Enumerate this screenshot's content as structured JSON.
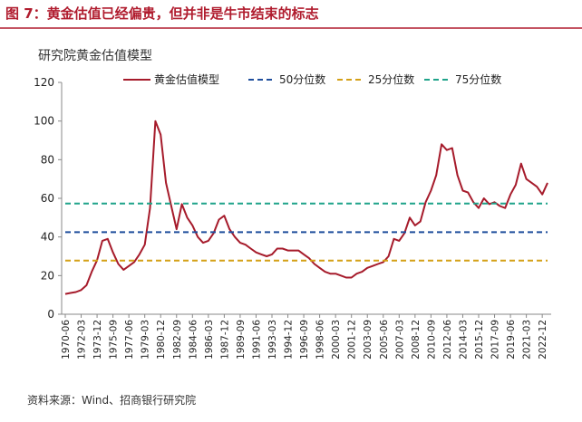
{
  "chart_data": {
    "type": "line",
    "title": "图 7：黄金估值已经偏贵，但并非是牛市结束的标志",
    "subtitle": "研究院黄金估值模型",
    "source": "资料来源：Wind、招商银行研究院",
    "x": [
      "1970-06",
      "1971-01",
      "1971-08",
      "1972-03",
      "1972-10",
      "1973-05",
      "1973-12",
      "1974-07",
      "1975-02",
      "1975-09",
      "1976-04",
      "1976-11",
      "1977-06",
      "1978-01",
      "1978-08",
      "1979-03",
      "1979-10",
      "1980-05",
      "1980-12",
      "1981-07",
      "1982-02",
      "1982-09",
      "1983-04",
      "1983-11",
      "1984-06",
      "1985-01",
      "1985-08",
      "1986-03",
      "1986-10",
      "1987-05",
      "1987-12",
      "1988-07",
      "1989-02",
      "1989-09",
      "1990-04",
      "1990-11",
      "1991-06",
      "1992-01",
      "1992-08",
      "1993-03",
      "1993-10",
      "1994-05",
      "1994-12",
      "1995-07",
      "1996-02",
      "1996-09",
      "1997-04",
      "1997-11",
      "1998-06",
      "1999-01",
      "1999-08",
      "2000-03",
      "2000-10",
      "2001-05",
      "2001-12",
      "2002-07",
      "2003-02",
      "2003-09",
      "2004-04",
      "2004-11",
      "2005-06",
      "2006-01",
      "2006-08",
      "2007-03",
      "2007-10",
      "2008-05",
      "2008-12",
      "2009-07",
      "2010-02",
      "2010-09",
      "2011-04",
      "2011-11",
      "2012-06",
      "2013-01",
      "2013-08",
      "2014-03",
      "2014-10",
      "2015-05",
      "2015-12",
      "2016-07",
      "2017-02",
      "2017-09",
      "2018-04",
      "2018-11",
      "2019-06",
      "2020-01",
      "2020-08",
      "2021-03",
      "2021-10",
      "2022-05",
      "2022-12",
      "2023-07"
    ],
    "series": [
      {
        "name": "黄金估值模型",
        "color": "#a61b2b",
        "values": [
          10.5,
          11,
          11.5,
          12.5,
          15,
          22,
          28,
          38,
          39,
          32,
          26,
          23,
          25,
          27,
          31,
          36,
          55,
          100,
          93,
          68,
          56,
          44,
          57,
          50,
          46,
          40,
          37,
          38,
          42,
          49,
          51,
          44,
          40,
          37,
          36,
          34,
          32,
          31,
          30,
          31,
          34,
          34,
          33,
          33,
          33,
          31,
          29,
          26,
          24,
          22,
          21,
          21,
          20,
          19,
          19,
          21,
          22,
          24,
          25,
          26,
          27,
          30,
          39,
          38,
          42,
          50,
          46,
          48,
          58,
          64,
          72,
          88,
          85,
          86,
          72,
          64,
          63,
          58,
          55,
          60,
          57,
          58,
          56,
          55,
          62,
          67,
          78,
          70,
          68,
          66,
          62,
          68
        ]
      }
    ],
    "reference_lines": [
      {
        "name": "50分位数",
        "color": "#1f4e9c",
        "value": 42.5
      },
      {
        "name": "25分位数",
        "color": "#d4a017",
        "value": 27.8
      },
      {
        "name": "75分位数",
        "color": "#1fa38a",
        "value": 57.3
      }
    ],
    "xlim": [
      "1970-06",
      "2023-07"
    ],
    "xticks": [
      "1970-06",
      "1972-03",
      "1973-12",
      "1975-09",
      "1977-06",
      "1979-03",
      "1980-12",
      "1982-09",
      "1984-06",
      "1986-03",
      "1987-12",
      "1989-09",
      "1991-06",
      "1993-03",
      "1994-12",
      "1996-09",
      "1998-06",
      "2000-03",
      "2001-12",
      "2003-09",
      "2005-06",
      "2007-03",
      "2008-12",
      "2010-09",
      "2012-06",
      "2014-03",
      "2015-12",
      "2017-09",
      "2019-06",
      "2021-03",
      "2022-12"
    ],
    "ylim": [
      0,
      120
    ],
    "yticks": [
      0,
      20,
      40,
      60,
      80,
      100,
      120
    ],
    "legend": "top"
  }
}
